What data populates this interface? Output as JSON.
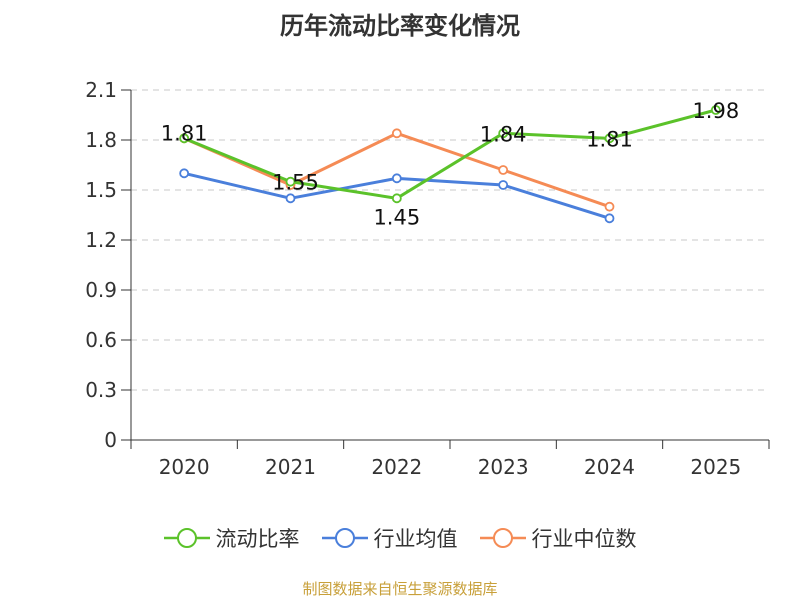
{
  "chart_data": {
    "type": "line",
    "title": "历年流动比率变化情况",
    "categories": [
      "2020",
      "2021",
      "2022",
      "2023",
      "2024",
      "2025"
    ],
    "y_ticks": [
      "0",
      "0.3",
      "0.6",
      "0.9",
      "1.2",
      "1.5",
      "1.8",
      "2.1"
    ],
    "ylim": [
      0,
      2.1
    ],
    "grid": true,
    "legend_position": "bottom",
    "series": [
      {
        "name": "流动比率",
        "color": "#5bc22a",
        "values": [
          1.81,
          1.55,
          1.45,
          1.84,
          1.81,
          1.98
        ],
        "labels": [
          "1.81",
          "1.55",
          "1.45",
          "1.84",
          "1.81",
          "1.98"
        ],
        "show_labels": true
      },
      {
        "name": "行业均值",
        "color": "#4a7fdb",
        "values": [
          1.6,
          1.45,
          1.57,
          1.53,
          1.33,
          null
        ],
        "show_labels": false
      },
      {
        "name": "行业中位数",
        "color": "#f58b55",
        "values": [
          1.81,
          1.53,
          1.84,
          1.62,
          1.4,
          null
        ],
        "show_labels": false
      }
    ]
  },
  "source": "制图数据来自恒生聚源数据库"
}
